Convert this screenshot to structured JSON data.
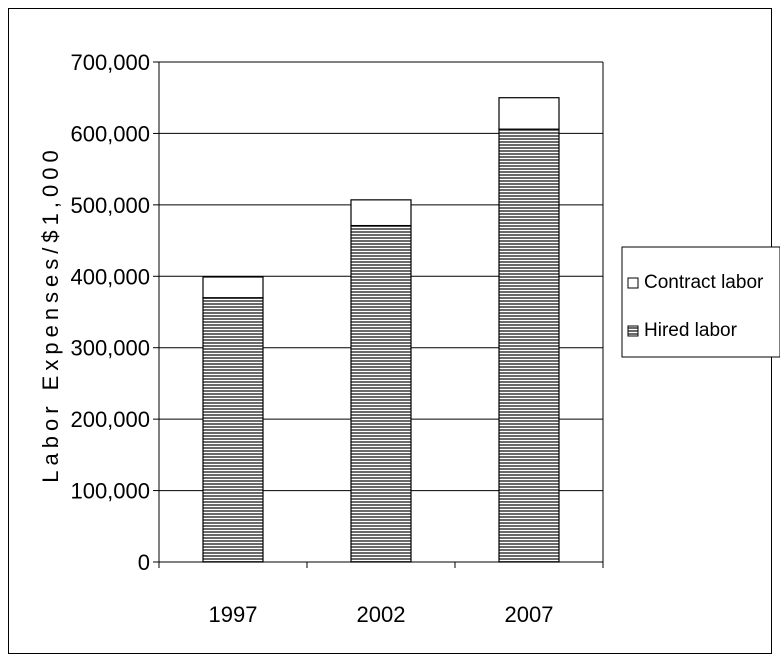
{
  "chart_data": {
    "type": "bar",
    "stacked": true,
    "categories": [
      "1997",
      "2002",
      "2007"
    ],
    "series": [
      {
        "name": "Hired labor",
        "values": [
          370000,
          471000,
          606000
        ],
        "pattern": "horizontal-stripes",
        "color": "#777777"
      },
      {
        "name": "Contract labor",
        "values": [
          29000,
          36000,
          44000
        ],
        "pattern": "solid",
        "color": "#ffffff"
      }
    ],
    "ylabel": "Labor Expenses/$1,000",
    "xlabel": "",
    "ylim": [
      0,
      700000
    ],
    "yticks": [
      0,
      100000,
      200000,
      300000,
      400000,
      500000,
      600000,
      700000
    ],
    "ytick_labels": [
      "0",
      "100,000",
      "200,000",
      "300,000",
      "400,000",
      "500,000",
      "600,000",
      "700,000"
    ],
    "grid": true,
    "legend": {
      "placement": "right",
      "entries": [
        "Contract labor",
        "Hired labor"
      ]
    }
  }
}
